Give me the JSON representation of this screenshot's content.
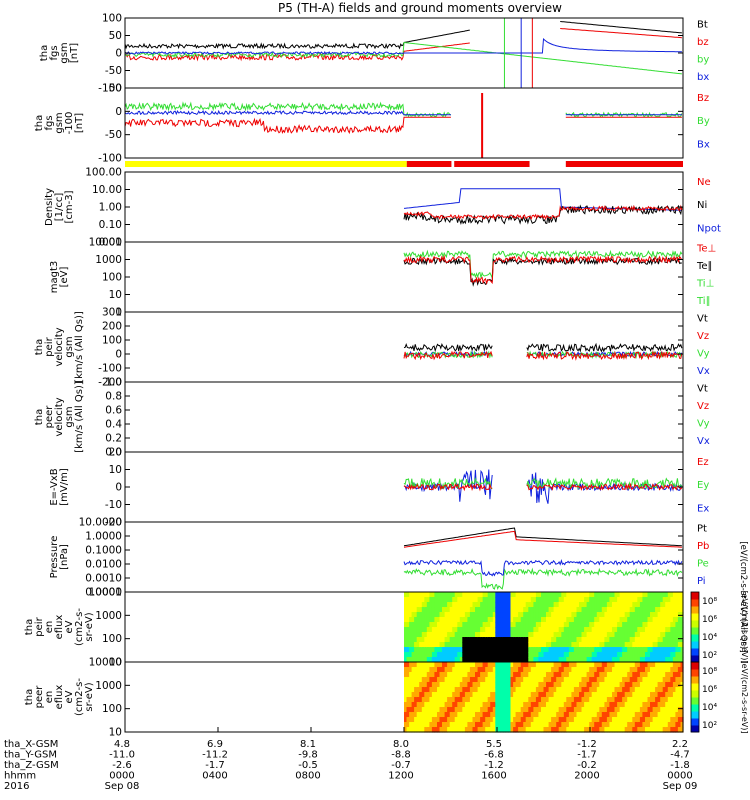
{
  "title": "P5 (TH-A) fields and ground moments overview",
  "colors": {
    "black": "#000000",
    "red": "#ee0000",
    "green": "#33dd33",
    "blue": "#1122dd",
    "yellow": "#ffff00"
  },
  "chart_data": {
    "type": "line",
    "panels": [
      {
        "ylabel": [
          "tha",
          "fgs",
          "gsm",
          "[nT]"
        ],
        "ticks": [
          "100",
          "50",
          "0",
          "-50",
          "-100"
        ],
        "legend": [
          {
            "text": "Bt",
            "color": "black"
          },
          {
            "text": "bz",
            "color": "red"
          },
          {
            "text": "by",
            "color": "green"
          },
          {
            "text": "bx",
            "color": "blue"
          }
        ]
      },
      {
        "ylabel": [
          "tha",
          "fgs",
          "gsm",
          "-100",
          "[nT]"
        ],
        "ticks": [
          "50",
          "0",
          "-50",
          "-100"
        ],
        "legend": [
          {
            "text": "Bz",
            "color": "red"
          },
          {
            "text": "By",
            "color": "green"
          },
          {
            "text": "Bx",
            "color": "blue"
          }
        ]
      },
      {
        "ylabel": [
          "Density",
          "[1/cc]",
          "[cm-3]"
        ],
        "ticks": [
          "100.00",
          "10.00",
          "1.00",
          "0.10",
          "0.01"
        ],
        "legend": [
          {
            "text": "Ne",
            "color": "red"
          },
          {
            "text": "Ni",
            "color": "black"
          },
          {
            "text": "Npot",
            "color": "blue"
          }
        ]
      },
      {
        "ylabel": [
          "magt3",
          "[eV]"
        ],
        "ticks": [
          "10000",
          "1000",
          "100",
          "10",
          "1"
        ],
        "legend": [
          {
            "text": "Te⊥",
            "color": "red"
          },
          {
            "text": "Te∥",
            "color": "black"
          },
          {
            "text": "Ti⊥",
            "color": "green"
          },
          {
            "text": "Ti∥",
            "color": "green"
          }
        ]
      },
      {
        "ylabel": [
          "tha",
          "peir",
          "velocity",
          "gsm",
          "[km/s (All Qs)]"
        ],
        "ticks": [
          "300",
          "200",
          "100",
          "0",
          "-100",
          "-200"
        ],
        "legend": [
          {
            "text": "Vt",
            "color": "black"
          },
          {
            "text": "Vz",
            "color": "red"
          },
          {
            "text": "Vy",
            "color": "green"
          },
          {
            "text": "Vx",
            "color": "blue"
          }
        ]
      },
      {
        "ylabel": [
          "tha",
          "peer",
          "velocity",
          "gsm",
          "[km/s (All Qs)]"
        ],
        "ticks": [
          "1.0",
          "0.8",
          "0.6",
          "0.4",
          "0.2",
          "0.0"
        ],
        "legend": [
          {
            "text": "Vt",
            "color": "black"
          },
          {
            "text": "Vz",
            "color": "red"
          },
          {
            "text": "Vy",
            "color": "green"
          },
          {
            "text": "Vx",
            "color": "blue"
          }
        ]
      },
      {
        "ylabel": [
          "E=-VxB",
          "[mV/m]"
        ],
        "ticks": [
          "20",
          "10",
          "0",
          "-10",
          "-20"
        ],
        "legend": [
          {
            "text": "Ez",
            "color": "red"
          },
          {
            "text": "Ey",
            "color": "green"
          },
          {
            "text": "Ex",
            "color": "blue"
          }
        ]
      },
      {
        "ylabel": [
          "Pressure",
          "[nPa]"
        ],
        "ticks": [
          "10.0000",
          "1.0000",
          "0.1000",
          "0.0100",
          "0.0010",
          "0.0001"
        ],
        "legend": [
          {
            "text": "Pt",
            "color": "black"
          },
          {
            "text": "Pb",
            "color": "red"
          },
          {
            "text": "Pe",
            "color": "green"
          },
          {
            "text": "Pi",
            "color": "blue"
          }
        ],
        "side_label": "[eV/(cm2-s-sr-eV) (All Qs)]"
      },
      {
        "ylabel": [
          "tha",
          "peir",
          "en",
          "eflux",
          "eV",
          "(cm2-s-",
          "sr-eV)"
        ],
        "ticks": [
          "10000",
          "1000",
          "100",
          "10"
        ],
        "colorbar": [
          "10⁸",
          "10⁶",
          "10⁴",
          "10²"
        ],
        "colorbar_label": "[eV/(cm2-s-sr-eV)]"
      },
      {
        "ylabel": [
          "tha",
          "peer",
          "en",
          "eflux",
          "eV",
          "(cm2-s-",
          "sr-eV)"
        ],
        "ticks": [
          "10000",
          "1000",
          "100",
          "10"
        ],
        "colorbar": [
          "10⁸",
          "10⁶",
          "10⁴",
          "10²"
        ],
        "colorbar_label": "[eV/(cm2-s-sr-eV)]"
      }
    ],
    "x_axis": {
      "row_labels": [
        "tha_X-GSM",
        "tha_Y-GSM",
        "tha_Z-GSM",
        "hhmm",
        "2016"
      ],
      "columns": [
        [
          "4.8",
          "-11.0",
          "-2.6",
          "0000",
          "Sep 08"
        ],
        [
          "6.9",
          "-11.2",
          "-1.7",
          "0400",
          ""
        ],
        [
          "8.1",
          "-9.8",
          "-0.5",
          "0800",
          ""
        ],
        [
          "8.0",
          "-8.8",
          "-0.7",
          "1200",
          ""
        ],
        [
          "5.5",
          "-6.8",
          "-1.2",
          "1600",
          ""
        ],
        [
          "-1.2",
          "-1.7",
          "-0.2",
          "2000",
          ""
        ],
        [
          "2.2",
          "-4.7",
          "-1.8",
          "0000",
          "Sep 09"
        ]
      ]
    },
    "status_bar": [
      {
        "from": 0,
        "to": 0.505,
        "color": "yellow"
      },
      {
        "from": 0.505,
        "to": 0.585,
        "color": "red"
      },
      {
        "from": 0.59,
        "to": 0.725,
        "color": "red"
      },
      {
        "from": 0.79,
        "to": 1,
        "color": "red"
      }
    ]
  }
}
